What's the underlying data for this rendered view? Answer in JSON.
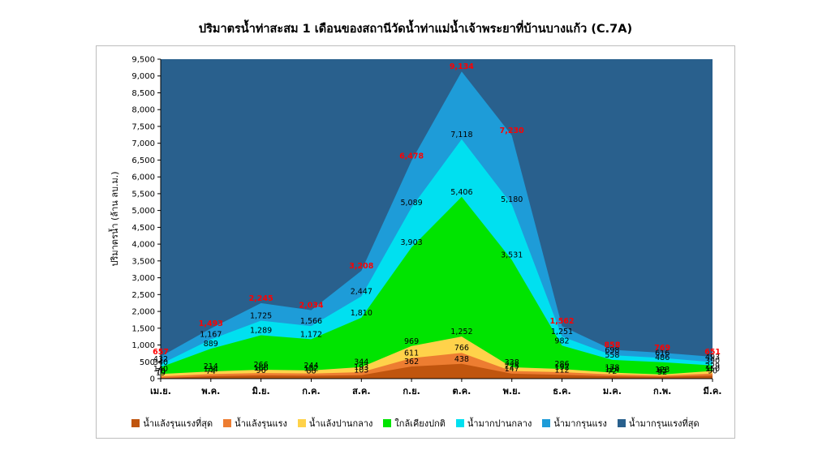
{
  "chart_data": {
    "type": "area",
    "title": "ปริมาตรน้ำท่าสะสม 1 เดือนของสถานีวัดน้ำท่าแม่น้ำเจ้าพระยาที่บ้านบางแก้ว (C.7A)",
    "ylabel": "ปริมาตรน้ำ (ล้าน ลบ.ม.)",
    "xlabel": "",
    "ylim": [
      0,
      9500
    ],
    "ytick_step": 500,
    "grid": false,
    "legend_position": "bottom",
    "label_color_default": "#000000",
    "categories": [
      "เม.ย.",
      "พ.ค.",
      "มิ.ย.",
      "ก.ค.",
      "ส.ค.",
      "ก.ย.",
      "ต.ค.",
      "พ.ย.",
      "ธ.ค.",
      "ม.ค.",
      "ก.พ.",
      "มี.ค."
    ],
    "bands": [
      {
        "name": "น้ำแล้งรุนแรงที่สุด",
        "color": "#C0550E",
        "top_values": [
          19,
          74,
          96,
          88,
          103,
          362,
          438,
          147,
          112,
          72,
          52,
          90
        ]
      },
      {
        "name": "น้ำแล้งรุนแรง",
        "color": "#ED7D31",
        "top_values": [
          70,
          134,
          166,
          152,
          193,
          611,
          766,
          225,
          192,
          124,
          92,
          150
        ]
      },
      {
        "name": "น้ำแล้งปานกลาง",
        "color": "#FFD24A",
        "top_values": [
          140,
          214,
          266,
          244,
          344,
          969,
          1252,
          338,
          286,
          178,
          123,
          229
        ]
      },
      {
        "name": "ใกล้เคียงปกติ",
        "color": "#00E400",
        "top_values": [
          340,
          889,
          1289,
          1172,
          1810,
          3903,
          5406,
          3531,
          982,
          558,
          486,
          390
        ]
      },
      {
        "name": "น้ำมากปานกลาง",
        "color": "#00E0F0",
        "top_values": [
          432,
          1167,
          1725,
          1566,
          2447,
          5089,
          7118,
          5180,
          1251,
          698,
          616,
          493
        ]
      },
      {
        "name": "น้ำมากรุนแรง",
        "color": "#1E9CD8",
        "label_color": "#FF0000",
        "top_values": [
          657,
          1493,
          2245,
          2034,
          3208,
          6478,
          9134,
          7230,
          1562,
          858,
          769,
          651
        ]
      },
      {
        "name": "น้ำมากรุนแรงที่สุด",
        "color": "#29608D",
        "fills_to_top": true
      }
    ]
  }
}
